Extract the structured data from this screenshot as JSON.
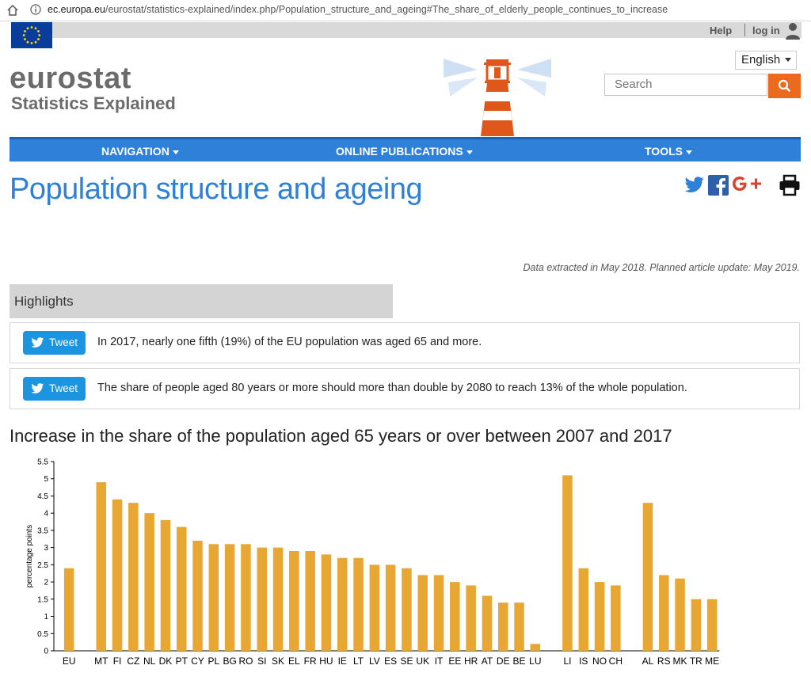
{
  "browser": {
    "url_host": "ec.europa.eu",
    "url_path": "/eurostat/statistics-explained/index.php/Population_structure_and_ageing#The_share_of_elderly_people_continues_to_increase"
  },
  "topbar": {
    "help_label": "Help",
    "login_label": "log in"
  },
  "logo": {
    "main": "eurostat",
    "sub": "Statistics Explained"
  },
  "language": {
    "selected": "English"
  },
  "search": {
    "placeholder": "Search"
  },
  "nav": {
    "items": [
      "NAVIGATION",
      "ONLINE PUBLICATIONS",
      "TOOLS"
    ]
  },
  "page": {
    "title": "Population structure and ageing",
    "data_note": "Data extracted in May 2018. Planned article update: May 2019."
  },
  "highlights": {
    "label": "Highlights",
    "tweet_label": "Tweet",
    "items": [
      "In 2017, nearly one fifth (19%) of the EU population was aged 65 and more.",
      "The share of people aged 80 years or more should more than double by 2080 to reach 13% of the whole population."
    ]
  },
  "colors": {
    "accent_blue": "#2f80d8",
    "bar_color": "#e8a633",
    "search_orange": "#ec6a1d",
    "tweet_blue": "#1b95e0"
  },
  "chart_title": "Increase in the share of the population aged 65 years or over between 2007 and 2017",
  "chart_data": {
    "type": "bar",
    "title": "Increase in the share of the population aged 65 years or over between 2007 and 2017",
    "xlabel": "",
    "ylabel": "percentage points",
    "ylim": [
      0,
      5.5
    ],
    "yticks": [
      0,
      0.5,
      1,
      1.5,
      2,
      2.5,
      3,
      3.5,
      4,
      4.5,
      5,
      5.5
    ],
    "grid": false,
    "categories": [
      "EU",
      "",
      "MT",
      "FI",
      "CZ",
      "NL",
      "DK",
      "PT",
      "CY",
      "PL",
      "BG",
      "RO",
      "SI",
      "SK",
      "EL",
      "FR",
      "HU",
      "IE",
      "LT",
      "LV",
      "ES",
      "SE",
      "UK",
      "IT",
      "EE",
      "HR",
      "AT",
      "DE",
      "BE",
      "LU",
      "",
      "LI",
      "IS",
      "NO",
      "CH",
      "",
      "AL",
      "RS",
      "MK",
      "TR",
      "ME"
    ],
    "values": [
      2.4,
      null,
      4.9,
      4.4,
      4.3,
      4.0,
      3.8,
      3.6,
      3.2,
      3.1,
      3.1,
      3.1,
      3.0,
      3.0,
      2.9,
      2.9,
      2.8,
      2.7,
      2.7,
      2.5,
      2.5,
      2.4,
      2.2,
      2.2,
      2.0,
      1.9,
      1.6,
      1.4,
      1.4,
      0.2,
      null,
      5.1,
      2.4,
      2.0,
      1.9,
      null,
      4.3,
      2.2,
      2.1,
      1.5,
      1.5
    ]
  }
}
